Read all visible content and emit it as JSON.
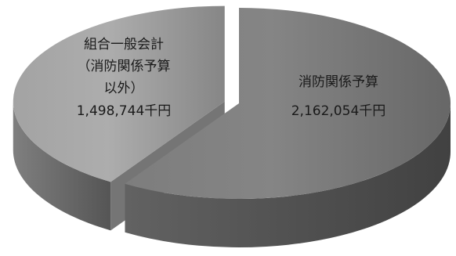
{
  "chart_data": {
    "type": "pie",
    "style": "3d",
    "categories": [
      "消防関係予算",
      "組合一般会計（消防関係予算以外）"
    ],
    "values": [
      2162054,
      1498744
    ],
    "unit": "千円",
    "colors": [
      "#7d7d7d",
      "#a3a3a3"
    ],
    "exploded": [
      false,
      true
    ],
    "legend": "none"
  }
}
